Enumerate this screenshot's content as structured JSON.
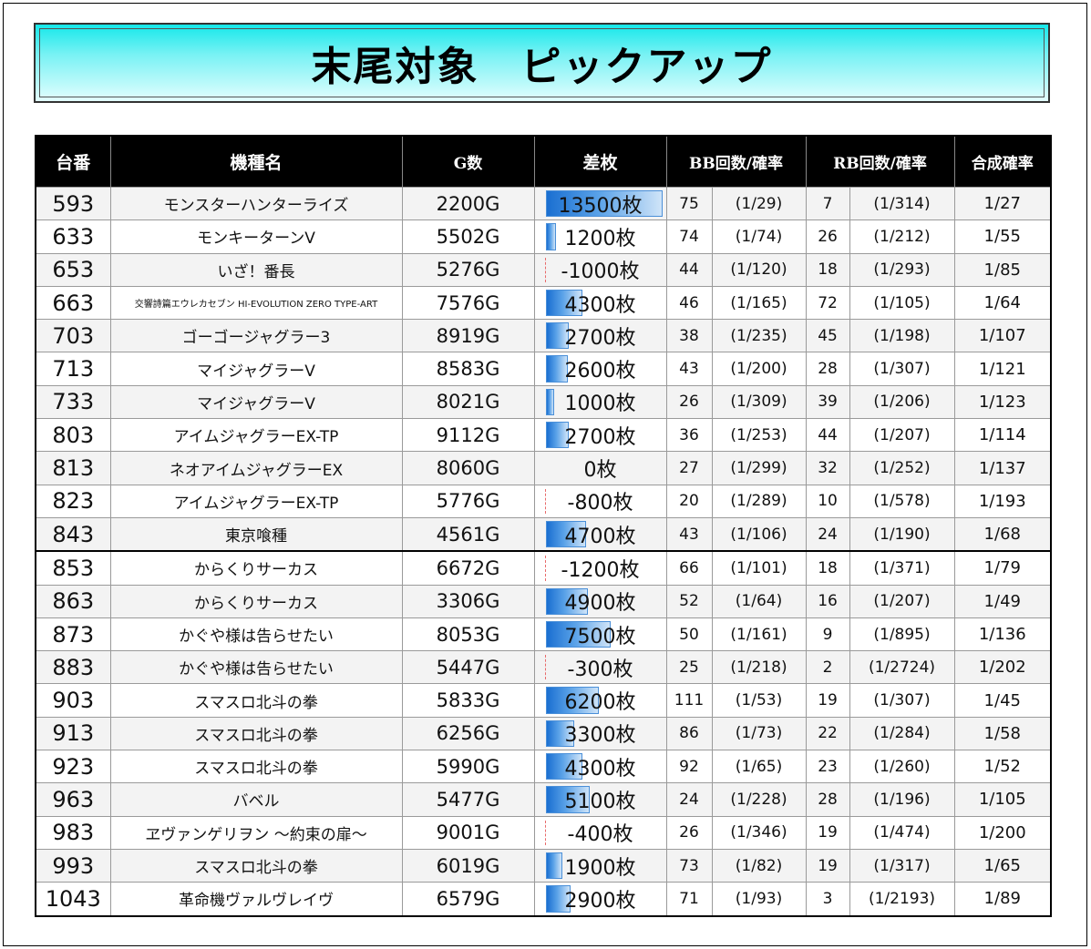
{
  "title": "末尾対象　ピックアップ",
  "headers": {
    "no": "台番",
    "name": "機種名",
    "games": "G数",
    "diff": "差枚",
    "bb": "BB回数/確率",
    "rb": "RB回数/確率",
    "comb": "合成確率"
  },
  "diff_scale_max": 13500,
  "rows": [
    {
      "no": "593",
      "name": "モンスターハンターライズ",
      "games": "2200G",
      "diff_value": 13500,
      "diff": "13500枚",
      "bb": "75",
      "bb_rate": "(1/29)",
      "rb": "7",
      "rb_rate": "(1/314)",
      "comb": "1/27"
    },
    {
      "no": "633",
      "name": "モンキーターンV",
      "games": "5502G",
      "diff_value": 1200,
      "diff": "1200枚",
      "bb": "74",
      "bb_rate": "(1/74)",
      "rb": "26",
      "rb_rate": "(1/212)",
      "comb": "1/55"
    },
    {
      "no": "653",
      "name": "いざ！番長",
      "games": "5276G",
      "diff_value": -1000,
      "diff": "-1000枚",
      "bb": "44",
      "bb_rate": "(1/120)",
      "rb": "18",
      "rb_rate": "(1/293)",
      "comb": "1/85"
    },
    {
      "no": "663",
      "name": "交響詩篇エウレカセブン HI-EVOLUTION ZERO TYPE-ART",
      "games": "7576G",
      "diff_value": 4300,
      "diff": "4300枚",
      "bb": "46",
      "bb_rate": "(1/165)",
      "rb": "72",
      "rb_rate": "(1/105)",
      "comb": "1/64",
      "small": true
    },
    {
      "no": "703",
      "name": "ゴーゴージャグラー3",
      "games": "8919G",
      "diff_value": 2700,
      "diff": "2700枚",
      "bb": "38",
      "bb_rate": "(1/235)",
      "rb": "45",
      "rb_rate": "(1/198)",
      "comb": "1/107"
    },
    {
      "no": "713",
      "name": "マイジャグラーV",
      "games": "8583G",
      "diff_value": 2600,
      "diff": "2600枚",
      "bb": "43",
      "bb_rate": "(1/200)",
      "rb": "28",
      "rb_rate": "(1/307)",
      "comb": "1/121"
    },
    {
      "no": "733",
      "name": "マイジャグラーV",
      "games": "8021G",
      "diff_value": 1000,
      "diff": "1000枚",
      "bb": "26",
      "bb_rate": "(1/309)",
      "rb": "39",
      "rb_rate": "(1/206)",
      "comb": "1/123"
    },
    {
      "no": "803",
      "name": "アイムジャグラーEX-TP",
      "games": "9112G",
      "diff_value": 2700,
      "diff": "2700枚",
      "bb": "36",
      "bb_rate": "(1/253)",
      "rb": "44",
      "rb_rate": "(1/207)",
      "comb": "1/114"
    },
    {
      "no": "813",
      "name": "ネオアイムジャグラーEX",
      "games": "8060G",
      "diff_value": 0,
      "diff": "0枚",
      "bb": "27",
      "bb_rate": "(1/299)",
      "rb": "32",
      "rb_rate": "(1/252)",
      "comb": "1/137"
    },
    {
      "no": "823",
      "name": "アイムジャグラーEX-TP",
      "games": "5776G",
      "diff_value": -800,
      "diff": "-800枚",
      "bb": "20",
      "bb_rate": "(1/289)",
      "rb": "10",
      "rb_rate": "(1/578)",
      "comb": "1/193"
    },
    {
      "no": "843",
      "name": "東京喰種",
      "games": "4561G",
      "diff_value": 4700,
      "diff": "4700枚",
      "bb": "43",
      "bb_rate": "(1/106)",
      "rb": "24",
      "rb_rate": "(1/190)",
      "comb": "1/68"
    },
    {
      "no": "853",
      "name": "からくりサーカス",
      "games": "6672G",
      "diff_value": -1200,
      "diff": "-1200枚",
      "bb": "66",
      "bb_rate": "(1/101)",
      "rb": "18",
      "rb_rate": "(1/371)",
      "comb": "1/79",
      "group_start": true
    },
    {
      "no": "863",
      "name": "からくりサーカス",
      "games": "3306G",
      "diff_value": 4900,
      "diff": "4900枚",
      "bb": "52",
      "bb_rate": "(1/64)",
      "rb": "16",
      "rb_rate": "(1/207)",
      "comb": "1/49"
    },
    {
      "no": "873",
      "name": "かぐや様は告らせたい",
      "games": "8053G",
      "diff_value": 7500,
      "diff": "7500枚",
      "bb": "50",
      "bb_rate": "(1/161)",
      "rb": "9",
      "rb_rate": "(1/895)",
      "comb": "1/136"
    },
    {
      "no": "883",
      "name": "かぐや様は告らせたい",
      "games": "5447G",
      "diff_value": -300,
      "diff": "-300枚",
      "bb": "25",
      "bb_rate": "(1/218)",
      "rb": "2",
      "rb_rate": "(1/2724)",
      "comb": "1/202"
    },
    {
      "no": "903",
      "name": "スマスロ北斗の拳",
      "games": "5833G",
      "diff_value": 6200,
      "diff": "6200枚",
      "bb": "111",
      "bb_rate": "(1/53)",
      "rb": "19",
      "rb_rate": "(1/307)",
      "comb": "1/45"
    },
    {
      "no": "913",
      "name": "スマスロ北斗の拳",
      "games": "6256G",
      "diff_value": 3300,
      "diff": "3300枚",
      "bb": "86",
      "bb_rate": "(1/73)",
      "rb": "22",
      "rb_rate": "(1/284)",
      "comb": "1/58"
    },
    {
      "no": "923",
      "name": "スマスロ北斗の拳",
      "games": "5990G",
      "diff_value": 4300,
      "diff": "4300枚",
      "bb": "92",
      "bb_rate": "(1/65)",
      "rb": "23",
      "rb_rate": "(1/260)",
      "comb": "1/52"
    },
    {
      "no": "963",
      "name": "バベル",
      "games": "5477G",
      "diff_value": 5100,
      "diff": "5100枚",
      "bb": "24",
      "bb_rate": "(1/228)",
      "rb": "28",
      "rb_rate": "(1/196)",
      "comb": "1/105"
    },
    {
      "no": "983",
      "name": "ヱヴァンゲリヲン ～約束の扉～",
      "games": "9001G",
      "diff_value": -400,
      "diff": "-400枚",
      "bb": "26",
      "bb_rate": "(1/346)",
      "rb": "19",
      "rb_rate": "(1/474)",
      "comb": "1/200"
    },
    {
      "no": "993",
      "name": "スマスロ北斗の拳",
      "games": "6019G",
      "diff_value": 1900,
      "diff": "1900枚",
      "bb": "73",
      "bb_rate": "(1/82)",
      "rb": "19",
      "rb_rate": "(1/317)",
      "comb": "1/65"
    },
    {
      "no": "1043",
      "name": "革命機ヴァルヴレイヴ",
      "games": "6579G",
      "diff_value": 2900,
      "diff": "2900枚",
      "bb": "71",
      "bb_rate": "(1/93)",
      "rb": "3",
      "rb_rate": "(1/2193)",
      "comb": "1/89"
    }
  ]
}
